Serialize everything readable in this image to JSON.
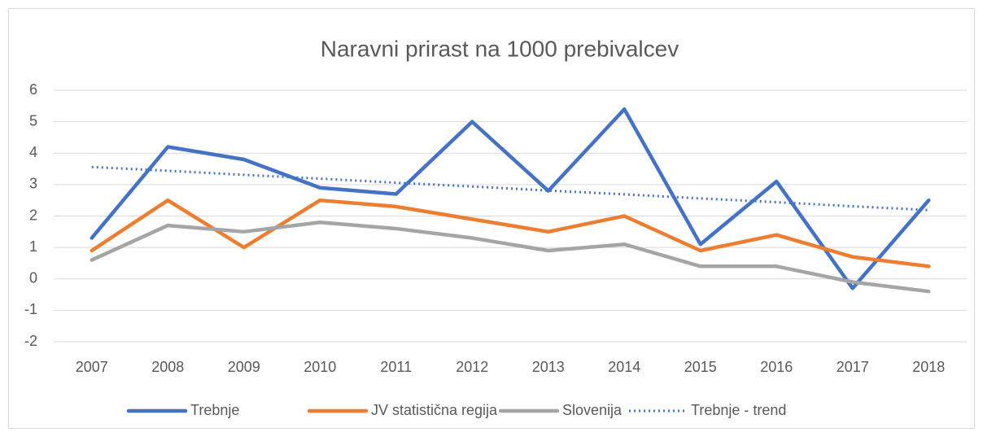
{
  "chart_data": {
    "type": "line",
    "title": "Naravni prirast na 1000 prebivalcev",
    "categories": [
      "2007",
      "2008",
      "2009",
      "2010",
      "2011",
      "2012",
      "2013",
      "2014",
      "2015",
      "2016",
      "2017",
      "2018"
    ],
    "series": [
      {
        "name": "Trebnje",
        "color": "#4472c4",
        "style": "solid",
        "values": [
          1.3,
          4.2,
          3.8,
          2.9,
          2.7,
          5.0,
          2.8,
          5.4,
          1.1,
          3.1,
          -0.3,
          2.5
        ]
      },
      {
        "name": "JV statistična regija",
        "color": "#ed7d31",
        "style": "solid",
        "values": [
          0.9,
          2.5,
          1.0,
          2.5,
          2.3,
          1.9,
          1.5,
          2.0,
          0.9,
          1.4,
          0.7,
          0.4
        ]
      },
      {
        "name": "Slovenija",
        "color": "#a5a5a5",
        "style": "solid",
        "values": [
          0.6,
          1.7,
          1.5,
          1.8,
          1.6,
          1.3,
          0.9,
          1.1,
          0.4,
          0.4,
          -0.1,
          -0.4
        ]
      },
      {
        "name": "Trebnje - trend",
        "color": "#4472c4",
        "style": "dotted",
        "values": [
          3.56,
          3.44,
          3.31,
          3.19,
          3.06,
          2.94,
          2.81,
          2.69,
          2.56,
          2.44,
          2.31,
          2.19
        ]
      }
    ],
    "ylim": [
      -2,
      6
    ],
    "yticks": [
      -2,
      -1,
      0,
      1,
      2,
      3,
      4,
      5,
      6
    ],
    "grid": true,
    "legend": "bottom"
  }
}
